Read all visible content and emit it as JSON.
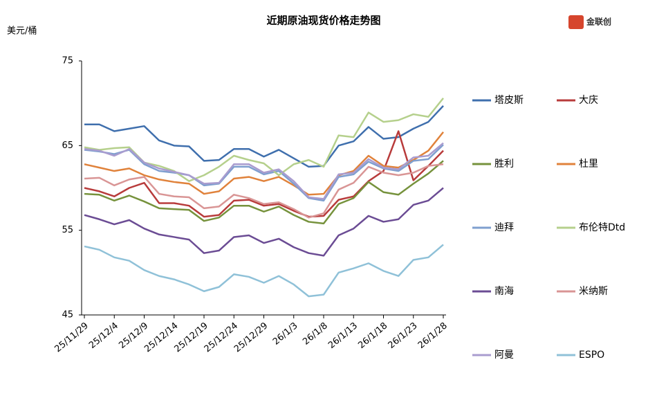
{
  "chart_data": {
    "type": "line",
    "title": "近期原油现货价格走势图",
    "y_label": "美元/桶",
    "logo": "金联创",
    "categories": [
      "25/11/29",
      null,
      "25/12/4",
      null,
      "25/12/9",
      null,
      "25/12/14",
      null,
      "25/12/19",
      null,
      "25/12/24",
      null,
      "25/12/29",
      null,
      "26/1/3",
      null,
      "26/1/8",
      null,
      "26/1/13",
      null,
      "26/1/18",
      null,
      "26/1/23",
      null,
      "26/1/28"
    ],
    "ylim": [
      45,
      75
    ],
    "yticks": [
      45,
      55,
      65,
      75
    ],
    "grid": false,
    "series": [
      {
        "name": "塔皮斯",
        "color": "#3f6fad",
        "values": [
          67.5,
          67.5,
          66.7,
          67,
          67.3,
          65.6,
          65,
          64.9,
          63.2,
          63.3,
          64.6,
          64.6,
          63.7,
          64.5,
          63.5,
          62.5,
          62.6,
          65,
          65.5,
          67.2,
          65.8,
          66,
          67,
          67.8,
          69.7
        ]
      },
      {
        "name": "大庆",
        "color": "#b83b3b",
        "values": [
          60,
          59.6,
          59,
          60,
          60.6,
          58.2,
          58.2,
          57.9,
          56.6,
          56.8,
          58.5,
          58.6,
          57.9,
          58.1,
          57.3,
          56.6,
          56.7,
          58.6,
          59,
          60.8,
          62,
          66.7,
          60.9,
          62.6,
          64.4
        ]
      },
      {
        "name": "胜利",
        "color": "#76923c",
        "values": [
          59.3,
          59.2,
          58.5,
          59.1,
          58.4,
          57.6,
          57.5,
          57.4,
          56.1,
          56.5,
          57.9,
          57.9,
          57.2,
          57.8,
          56.8,
          56,
          55.8,
          58.1,
          58.8,
          60.7,
          59.5,
          59.2,
          60.5,
          61.7,
          63.2
        ]
      },
      {
        "name": "杜里",
        "color": "#e0823b",
        "values": [
          62.8,
          62.4,
          62,
          62.3,
          61.5,
          61,
          60.7,
          60.5,
          59.3,
          59.6,
          61.1,
          61.3,
          60.8,
          61.3,
          60.3,
          59.2,
          59.3,
          61.5,
          62,
          63.8,
          62.6,
          62.4,
          63.3,
          64.4,
          66.6
        ]
      },
      {
        "name": "迪拜",
        "color": "#7f9fcf",
        "values": [
          64.5,
          64.3,
          64,
          64.5,
          62.8,
          62,
          61.8,
          61.5,
          60.3,
          60.5,
          62.5,
          62.5,
          61.6,
          62,
          60.5,
          58.8,
          58.5,
          61.3,
          61.6,
          63.1,
          62.3,
          62,
          63.2,
          63.4,
          65.1
        ]
      },
      {
        "name": "布伦特Dtd",
        "color": "#b5d08c",
        "values": [
          64.8,
          64.5,
          64.7,
          64.8,
          63,
          62.6,
          62,
          60.8,
          61.5,
          62.5,
          63.8,
          63.3,
          62.9,
          61.5,
          62.8,
          63.3,
          62.5,
          66.2,
          66,
          68.9,
          67.8,
          68,
          68.7,
          68.4,
          70.6
        ]
      },
      {
        "name": "南海",
        "color": "#6b4c94",
        "values": [
          56.8,
          56.3,
          55.7,
          56.2,
          55.2,
          54.5,
          54.2,
          53.9,
          52.3,
          52.6,
          54.2,
          54.4,
          53.5,
          54,
          53,
          52.3,
          52,
          54.4,
          55.2,
          56.7,
          56,
          56.3,
          58,
          58.5,
          60
        ]
      },
      {
        "name": "米纳斯",
        "color": "#d99595",
        "values": [
          61.1,
          61.2,
          60.3,
          61,
          61.3,
          59.3,
          59,
          58.9,
          57.6,
          57.8,
          59.2,
          58.8,
          58.1,
          58.3,
          57.5,
          56.5,
          57,
          59.8,
          60.6,
          62.5,
          61.8,
          61.5,
          61.8,
          62.6,
          62.8
        ]
      },
      {
        "name": "阿曼",
        "color": "#a99ccf",
        "values": [
          64.6,
          64.4,
          63.8,
          64.6,
          63,
          62.3,
          61.9,
          61.5,
          60.5,
          60.6,
          62.8,
          62.8,
          61.8,
          62.2,
          60.8,
          58.9,
          58.7,
          61.6,
          61.8,
          63.4,
          62.4,
          62.2,
          63.6,
          63.8,
          65.3
        ]
      },
      {
        "name": "ESPO",
        "color": "#8fc1d8",
        "values": [
          53.1,
          52.7,
          51.8,
          51.4,
          50.3,
          49.6,
          49.2,
          48.6,
          47.8,
          48.3,
          49.8,
          49.5,
          48.8,
          49.6,
          48.6,
          47.2,
          47.4,
          50,
          50.5,
          51.1,
          50.2,
          49.6,
          51.5,
          51.8,
          53.3
        ]
      }
    ]
  }
}
